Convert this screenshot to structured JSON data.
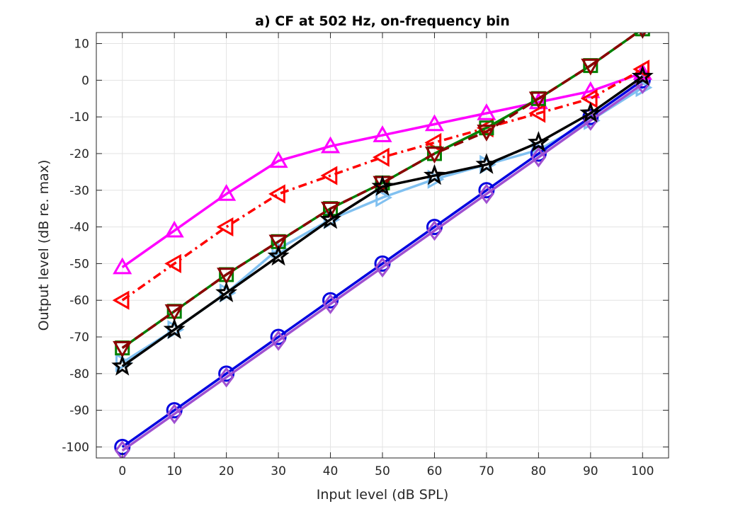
{
  "chart_data": {
    "type": "line",
    "title": "a) CF at 502 Hz, on-frequency bin",
    "xlabel": "Input level (dB SPL)",
    "ylabel": "Output level (dB re. max)",
    "xlim": [
      -5,
      105
    ],
    "ylim": [
      -103,
      13
    ],
    "grid": true,
    "xticks": [
      0,
      10,
      20,
      30,
      40,
      50,
      60,
      70,
      80,
      90,
      100
    ],
    "yticks": [
      -100,
      -90,
      -80,
      -70,
      -60,
      -50,
      -40,
      -30,
      -20,
      -10,
      0,
      10
    ],
    "x": [
      0,
      10,
      20,
      30,
      40,
      50,
      60,
      70,
      80,
      90,
      100
    ],
    "series": [
      {
        "name": "light-blue-triangle-right",
        "color": "#80c0f0",
        "dash": "solid",
        "marker": "triangle-right",
        "values": [
          -77,
          -68,
          -58,
          -46,
          -38,
          -32,
          -27,
          -23,
          -19,
          -11,
          -2
        ]
      },
      {
        "name": "blue-circle",
        "color": "#0000e0",
        "dash": "solid",
        "marker": "circle",
        "values": [
          -100,
          -90,
          -80,
          -70,
          -60,
          -50,
          -40,
          -30,
          -20,
          -10,
          0
        ]
      },
      {
        "name": "purple-diamond",
        "color": "#a050d0",
        "dash": "solid",
        "marker": "diamond",
        "values": [
          -101,
          -91,
          -81,
          -71,
          -61,
          -51,
          -41,
          -31,
          -21,
          -11,
          -1
        ]
      },
      {
        "name": "magenta-triangle-up",
        "color": "#ff00ff",
        "dash": "solid",
        "marker": "triangle-up",
        "values": [
          -51,
          -41,
          -31,
          -22,
          -18,
          -15,
          -12,
          -9,
          -6,
          -3,
          2
        ]
      },
      {
        "name": "red-triangle-left",
        "color": "#ff0000",
        "dash": "dashdot",
        "marker": "triangle-left",
        "values": [
          -60,
          -50,
          -40,
          -31,
          -26,
          -21,
          -17,
          -13,
          -9,
          -5,
          3
        ]
      },
      {
        "name": "green-square",
        "color": "#008000",
        "dash": "solid",
        "marker": "square",
        "values": [
          -73,
          -63,
          -53,
          -44,
          -35,
          -28,
          -20,
          -13,
          -5,
          4,
          14
        ]
      },
      {
        "name": "darkred-triangle-down",
        "color": "#8b0000",
        "dash": "dashed",
        "marker": "triangle-down",
        "values": [
          -73,
          -63,
          -53,
          -44,
          -35,
          -28,
          -20,
          -14,
          -5,
          4,
          14
        ]
      },
      {
        "name": "black-star",
        "color": "#000000",
        "dash": "solid",
        "marker": "star",
        "values": [
          -78,
          -68,
          -58,
          -48,
          -38,
          -29,
          -26,
          -23,
          -17,
          -9,
          1
        ]
      }
    ]
  }
}
